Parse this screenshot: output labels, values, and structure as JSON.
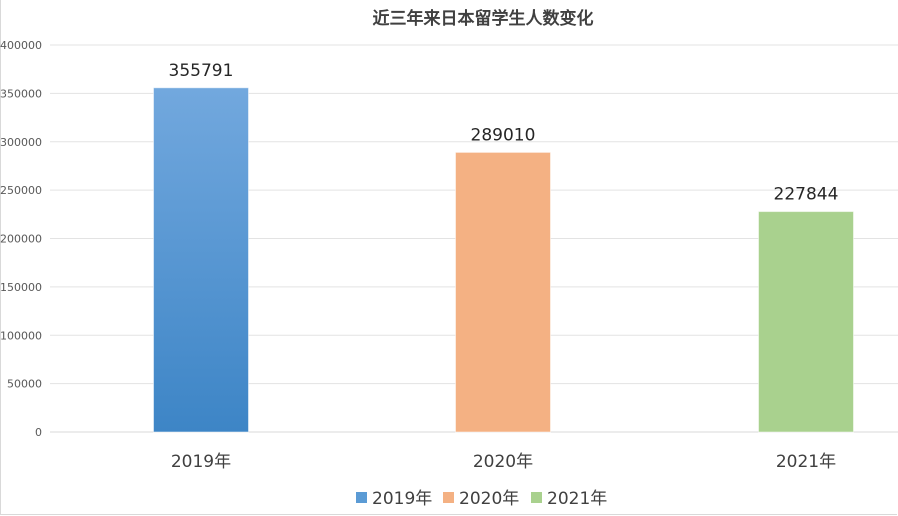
{
  "chart_data": {
    "type": "bar",
    "title": "近三年来日本留学生人数变化",
    "categories": [
      "2019年",
      "2020年",
      "2021年"
    ],
    "values": [
      355791,
      289010,
      227844
    ],
    "colors": [
      "#5b9bd5",
      "#f4b183",
      "#a9d18e"
    ],
    "ylim": [
      0,
      400000
    ],
    "yticks": [
      0,
      50000,
      100000,
      150000,
      200000,
      250000,
      300000,
      350000,
      400000
    ],
    "grid": true,
    "legend": {
      "placement": "bottom",
      "entries": [
        "2019年",
        "2020年",
        "2021年"
      ]
    }
  }
}
